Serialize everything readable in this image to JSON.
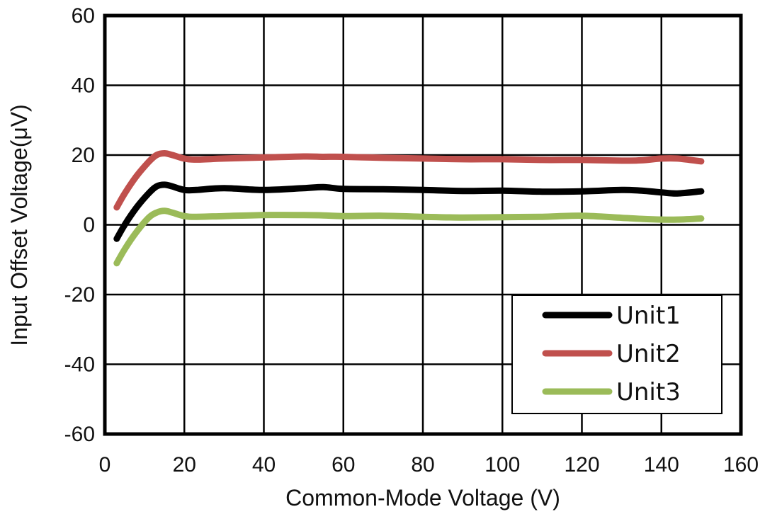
{
  "chart_data": {
    "type": "line",
    "title": "",
    "xlabel": "Common-Mode Voltage (V)",
    "ylabel": "Input Offset Voltage(μV)",
    "xlim": [
      0,
      160
    ],
    "ylim": [
      -60,
      60
    ],
    "xticks": [
      0,
      20,
      40,
      60,
      80,
      100,
      120,
      140,
      160
    ],
    "yticks": [
      -60,
      -40,
      -20,
      0,
      20,
      40,
      60
    ],
    "grid": true,
    "legend_position": "bottom-right",
    "series": [
      {
        "name": "Unit1",
        "color": "#000000",
        "x": [
          3,
          5,
          8,
          11,
          13,
          15,
          17,
          20,
          23,
          30,
          40,
          50,
          55,
          60,
          70,
          80,
          90,
          100,
          110,
          120,
          130,
          135,
          140,
          144,
          150
        ],
        "y": [
          -4,
          0,
          5,
          9,
          11,
          11.5,
          11,
          10,
          10,
          10.5,
          10,
          10.5,
          10.8,
          10.3,
          10.2,
          10,
          9.7,
          9.8,
          9.5,
          9.6,
          10,
          9.8,
          9.3,
          9,
          9.6
        ]
      },
      {
        "name": "Unit2",
        "color": "#c0504d",
        "x": [
          3,
          5,
          8,
          11,
          13,
          15,
          17,
          20,
          23,
          30,
          40,
          50,
          55,
          60,
          70,
          80,
          90,
          100,
          110,
          120,
          130,
          135,
          140,
          144,
          150
        ],
        "y": [
          5,
          9,
          14,
          18,
          20,
          20.5,
          20,
          19,
          18.7,
          19,
          19.3,
          19.6,
          19.5,
          19.5,
          19.2,
          19,
          18.8,
          18.8,
          18.6,
          18.6,
          18.4,
          18.5,
          19,
          19,
          18.2
        ]
      },
      {
        "name": "Unit3",
        "color": "#9bbb59",
        "x": [
          3,
          5,
          8,
          11,
          13,
          15,
          17,
          20,
          23,
          30,
          40,
          50,
          55,
          60,
          70,
          80,
          90,
          100,
          110,
          120,
          130,
          135,
          140,
          144,
          150
        ],
        "y": [
          -11,
          -7,
          -2,
          2,
          3.5,
          4,
          3.5,
          2.5,
          2.3,
          2.5,
          2.8,
          2.8,
          2.7,
          2.5,
          2.6,
          2.3,
          2.1,
          2.2,
          2.3,
          2.6,
          2,
          1.7,
          1.5,
          1.5,
          1.8
        ]
      }
    ]
  }
}
